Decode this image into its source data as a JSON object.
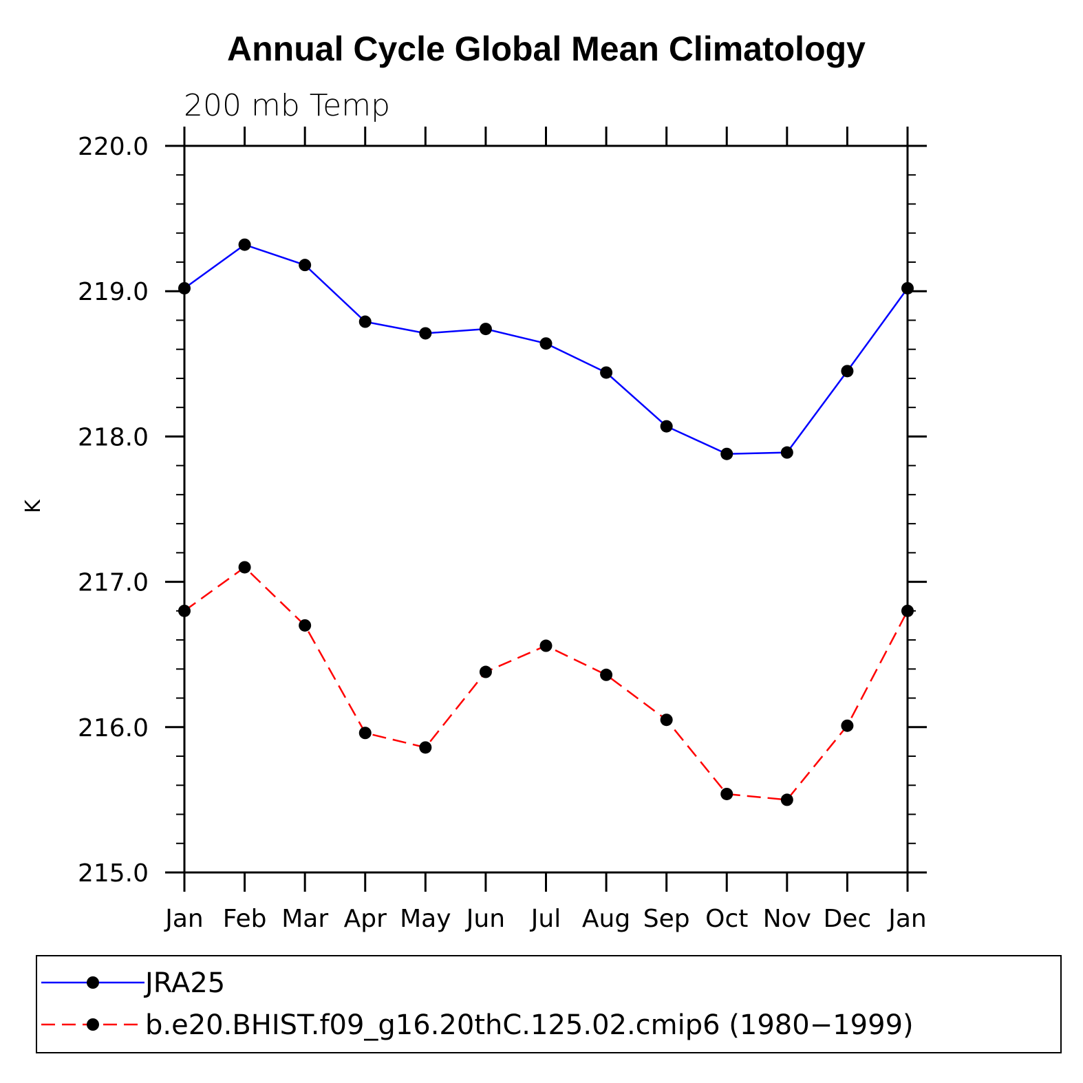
{
  "chart_data": {
    "type": "line",
    "title": "Annual Cycle Global Mean Climatology",
    "subtitle": "200 mb Temp",
    "ylabel": "K",
    "xlabel": "",
    "categories": [
      "Jan",
      "Feb",
      "Mar",
      "Apr",
      "May",
      "Jun",
      "Jul",
      "Aug",
      "Sep",
      "Oct",
      "Nov",
      "Dec",
      "Jan"
    ],
    "ylim": [
      215.0,
      220.0
    ],
    "yticks": [
      "215.0",
      "216.0",
      "217.0",
      "218.0",
      "219.0",
      "220.0"
    ],
    "grid": false,
    "legend_position": "bottom",
    "series": [
      {
        "name": "JRA25",
        "color": "#0000ff",
        "line_style": "solid",
        "marker": "filled-circle",
        "values": [
          219.02,
          219.32,
          219.18,
          218.79,
          218.71,
          218.74,
          218.64,
          218.44,
          218.07,
          217.88,
          217.89,
          218.45,
          219.02
        ]
      },
      {
        "name": "b.e20.BHIST.f09_g16.20thC.125.02.cmip6 (1980−1999)",
        "color": "#ff0000",
        "line_style": "dashed",
        "marker": "filled-circle",
        "values": [
          216.8,
          217.1,
          216.7,
          215.96,
          215.86,
          216.38,
          216.56,
          216.36,
          216.05,
          215.54,
          215.5,
          216.01,
          216.8
        ]
      }
    ]
  }
}
